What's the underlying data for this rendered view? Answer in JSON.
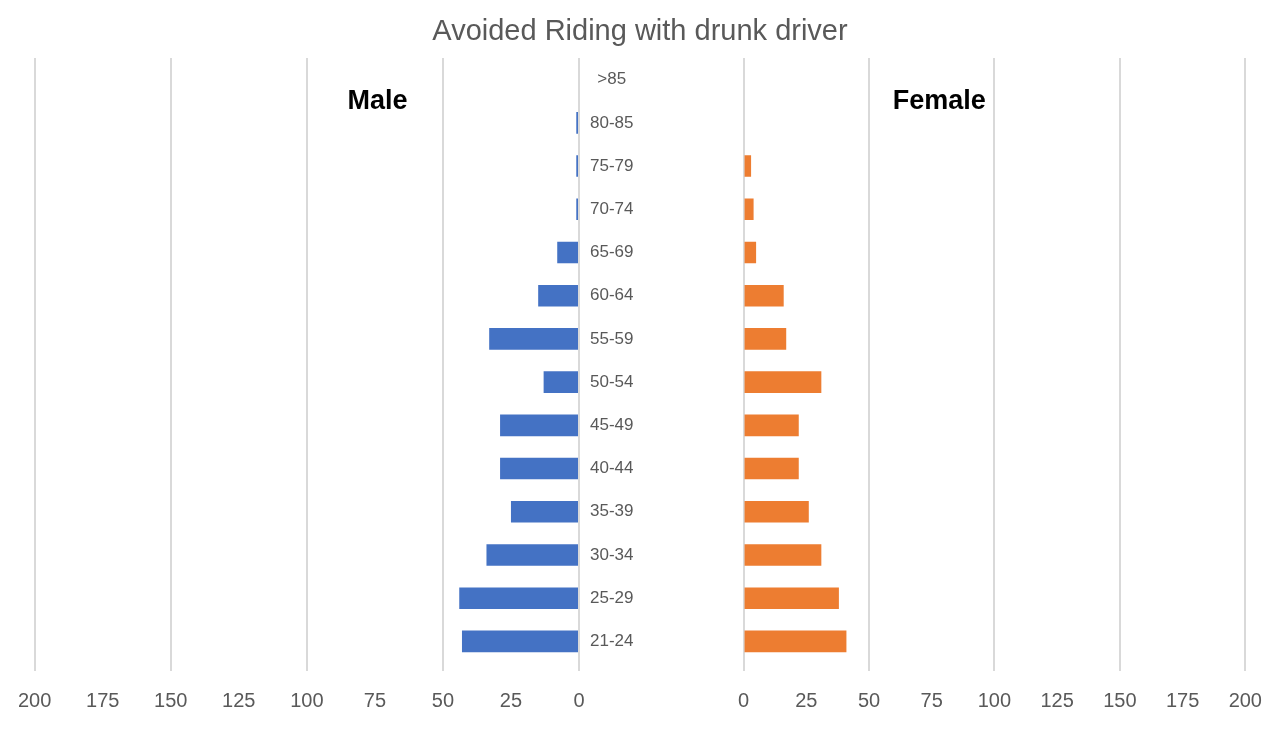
{
  "chart_data": [
    {
      "type": "bar",
      "orientation": "horizontal",
      "title": "Avoided Riding with drunk driver",
      "categories": [
        ">85",
        "80-85",
        "75-79",
        "70-74",
        "65-69",
        "60-64",
        "55-59",
        "50-54",
        "45-49",
        "40-44",
        "35-39",
        "30-34",
        "25-29",
        "21-24"
      ],
      "series": [
        {
          "name": "Male",
          "color": "#4472c4",
          "values": [
            0,
            1,
            1,
            1,
            8,
            15,
            33,
            13,
            29,
            29,
            25,
            34,
            44,
            43
          ]
        }
      ],
      "xlim": [
        200,
        0
      ],
      "xticks": [
        200,
        175,
        150,
        125,
        100,
        75,
        50,
        25,
        0
      ],
      "grid": "x"
    },
    {
      "type": "bar",
      "orientation": "horizontal",
      "categories": [
        null,
        null,
        null,
        null,
        null,
        null,
        null,
        null,
        null,
        null,
        null,
        null,
        null,
        null
      ],
      "series": [
        {
          "name": "Female",
          "color": "#ed7d31",
          "values": [
            0,
            0,
            3,
            4,
            5,
            16,
            17,
            31,
            22,
            22,
            26,
            31,
            38,
            41
          ]
        }
      ],
      "xlim": [
        0,
        200
      ],
      "xticks": [
        0,
        25,
        50,
        75,
        100,
        125,
        150,
        175,
        200
      ],
      "grid": "x",
      "tick_labels": "x"
    }
  ]
}
